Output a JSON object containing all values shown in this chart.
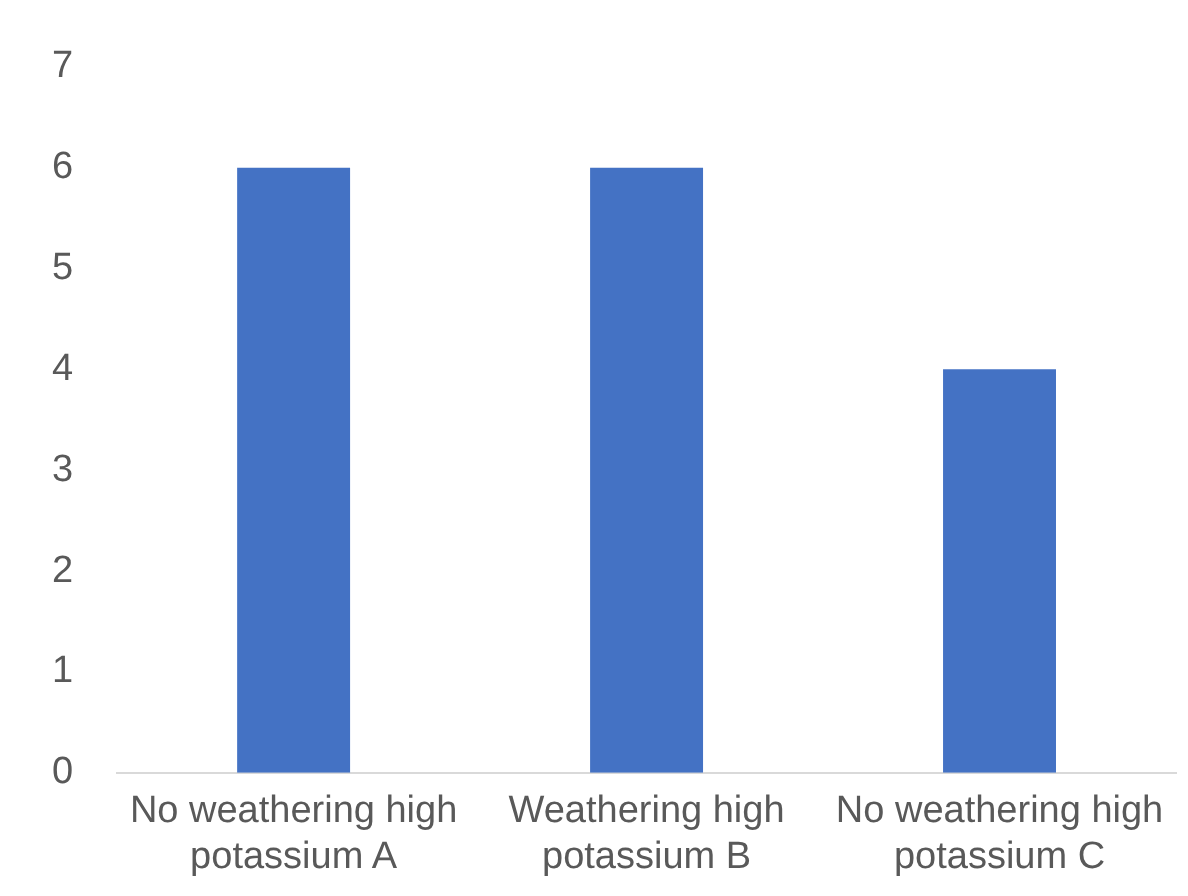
{
  "chart_data": {
    "type": "bar",
    "categories": [
      "No weathering high potassium A",
      "Weathering high potassium B",
      "No weathering high potassium C"
    ],
    "values": [
      6,
      6,
      4
    ],
    "color": "#4472c4",
    "ylim": [
      0,
      7
    ],
    "yticks": [
      0,
      1,
      2,
      3,
      4,
      5,
      6,
      7
    ],
    "grid": false
  }
}
